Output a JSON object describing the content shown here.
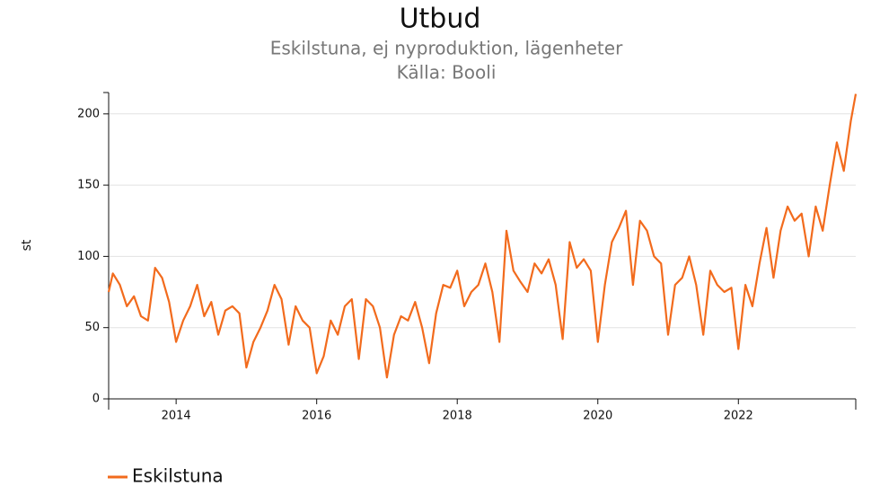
{
  "chart_data": {
    "type": "line",
    "title": "Utbud",
    "subtitle": "Eskilstuna, ej nyproduktion, lägenheter",
    "source": "Källa: Booli",
    "y_label": "st",
    "x": [
      2013.04,
      2013.1,
      2013.2,
      2013.3,
      2013.4,
      2013.5,
      2013.6,
      2013.7,
      2013.8,
      2013.9,
      2014.0,
      2014.1,
      2014.2,
      2014.3,
      2014.4,
      2014.5,
      2014.6,
      2014.7,
      2014.8,
      2014.9,
      2015.0,
      2015.1,
      2015.2,
      2015.3,
      2015.4,
      2015.5,
      2015.6,
      2015.7,
      2015.8,
      2015.9,
      2016.0,
      2016.1,
      2016.2,
      2016.3,
      2016.4,
      2016.5,
      2016.6,
      2016.7,
      2016.8,
      2016.9,
      2017.0,
      2017.1,
      2017.2,
      2017.3,
      2017.4,
      2017.5,
      2017.6,
      2017.7,
      2017.8,
      2017.9,
      2018.0,
      2018.1,
      2018.2,
      2018.3,
      2018.4,
      2018.5,
      2018.6,
      2018.7,
      2018.8,
      2018.9,
      2019.0,
      2019.1,
      2019.2,
      2019.3,
      2019.4,
      2019.5,
      2019.6,
      2019.7,
      2019.8,
      2019.9,
      2020.0,
      2020.1,
      2020.2,
      2020.3,
      2020.4,
      2020.5,
      2020.6,
      2020.7,
      2020.8,
      2020.9,
      2021.0,
      2021.1,
      2021.2,
      2021.3,
      2021.4,
      2021.5,
      2021.6,
      2021.7,
      2021.8,
      2021.9,
      2022.0,
      2022.1,
      2022.2,
      2022.3,
      2022.4,
      2022.5,
      2022.6,
      2022.7,
      2022.8,
      2022.9,
      2023.0,
      2023.1,
      2023.2,
      2023.3,
      2023.4,
      2023.5,
      2023.6,
      2023.67
    ],
    "series": [
      {
        "name": "Eskilstuna",
        "color": "#f26b1d",
        "values": [
          75,
          88,
          80,
          65,
          72,
          58,
          55,
          92,
          85,
          68,
          40,
          55,
          65,
          80,
          58,
          68,
          45,
          62,
          65,
          60,
          22,
          40,
          50,
          62,
          80,
          70,
          38,
          65,
          55,
          50,
          18,
          30,
          55,
          45,
          65,
          70,
          28,
          70,
          65,
          50,
          15,
          45,
          58,
          55,
          68,
          50,
          25,
          60,
          80,
          78,
          90,
          65,
          75,
          80,
          95,
          75,
          40,
          118,
          90,
          82,
          75,
          95,
          88,
          98,
          80,
          42,
          110,
          92,
          98,
          90,
          40,
          80,
          110,
          120,
          132,
          80,
          125,
          118,
          100,
          95,
          45,
          80,
          85,
          100,
          80,
          45,
          90,
          80,
          75,
          78,
          35,
          80,
          65,
          95,
          120,
          85,
          118,
          135,
          125,
          130,
          100,
          135,
          118,
          150,
          180,
          160,
          195,
          214
        ]
      }
    ],
    "xlim": [
      2013.04,
      2023.67
    ],
    "xticks": [
      2014,
      2016,
      2018,
      2020,
      2022
    ],
    "ylim": [
      0,
      215
    ],
    "yticks": [
      0,
      50,
      100,
      150,
      200
    ],
    "grid": true,
    "legend": "bottom-left"
  }
}
